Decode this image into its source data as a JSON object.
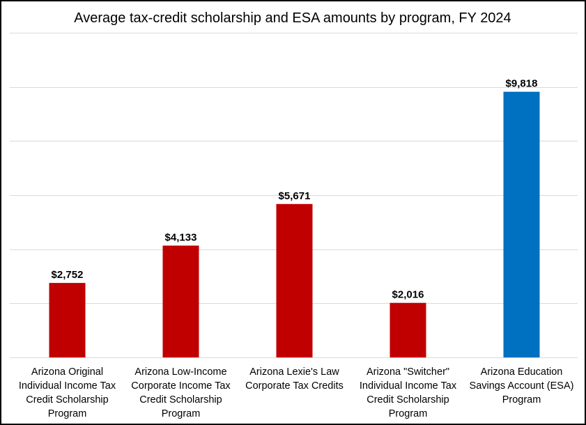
{
  "chart_data": {
    "type": "bar",
    "title": "Average tax-credit scholarship and ESA amounts by program, FY 2024",
    "xlabel": "",
    "ylabel": "",
    "ylim": [
      0,
      12000
    ],
    "grid": true,
    "legend": "none",
    "categories": [
      [
        "Arizona Original",
        "Individual Income Tax",
        "Credit Scholarship",
        "Program"
      ],
      [
        "Arizona Low-Income",
        "Corporate Income Tax",
        "Credit Scholarship",
        "Program"
      ],
      [
        "Arizona Lexie's Law",
        "Corporate Tax Credits"
      ],
      [
        "Arizona \"Switcher\"",
        "Individual Income Tax",
        "Credit Scholarship",
        "Program"
      ],
      [
        "Arizona Education",
        "Savings Account (ESA)",
        "Program"
      ]
    ],
    "values": [
      2752,
      4133,
      5671,
      2016,
      9818
    ],
    "data_labels": [
      "$2,752",
      "$4,133",
      "$5,671",
      "$2,016",
      "$9,818"
    ],
    "bar_colors": [
      "#c00000",
      "#c00000",
      "#c00000",
      "#c00000",
      "#0070c0"
    ]
  }
}
